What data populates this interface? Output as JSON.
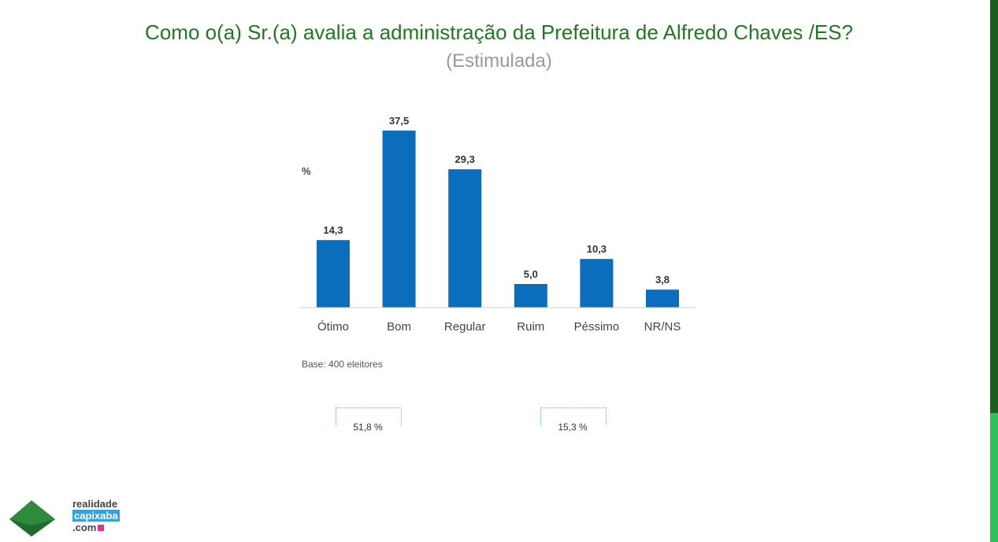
{
  "title": "Como o(a) Sr.(a) avalia a administração da Prefeitura de Alfredo Chaves /ES?",
  "subtitle": "(Estimulada)",
  "chart_data": {
    "type": "bar",
    "ylabel": "%",
    "categories": [
      "Ótimo",
      "Bom",
      "Regular",
      "Ruim",
      "Péssimo",
      "NR/NS"
    ],
    "values": [
      14.3,
      37.5,
      29.3,
      5.0,
      10.3,
      3.8
    ],
    "value_labels": [
      "14,3",
      "37,5",
      "29,3",
      "5,0",
      "10,3",
      "3,8"
    ],
    "ylim": [
      0,
      40
    ],
    "grid": false,
    "bar_color": "#0a6ebd"
  },
  "base_note": "Base: 400 eleitores",
  "groups": [
    {
      "label": "51,8 %"
    },
    {
      "label": "15,3 %"
    }
  ],
  "brand": {
    "line1": "realidade",
    "line2": "capixaba",
    "line3": ".com",
    "colors": {
      "green": "#2e8b3e",
      "blue": "#3aa0d8",
      "pink": "#e0338f"
    }
  }
}
